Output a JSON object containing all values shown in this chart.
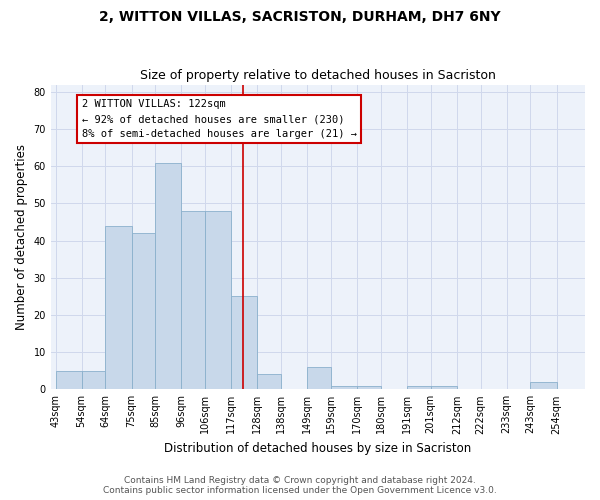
{
  "title": "2, WITTON VILLAS, SACRISTON, DURHAM, DH7 6NY",
  "subtitle": "Size of property relative to detached houses in Sacriston",
  "xlabel": "Distribution of detached houses by size in Sacriston",
  "ylabel": "Number of detached properties",
  "bar_labels": [
    "43sqm",
    "54sqm",
    "64sqm",
    "75sqm",
    "85sqm",
    "96sqm",
    "106sqm",
    "117sqm",
    "128sqm",
    "138sqm",
    "149sqm",
    "159sqm",
    "170sqm",
    "180sqm",
    "191sqm",
    "201sqm",
    "212sqm",
    "222sqm",
    "233sqm",
    "243sqm",
    "254sqm"
  ],
  "bar_values": [
    5,
    5,
    44,
    42,
    61,
    48,
    48,
    25,
    4,
    0,
    6,
    1,
    1,
    0,
    1,
    1,
    0,
    0,
    0,
    2,
    0
  ],
  "bar_color": "#c8d8ea",
  "bar_edge_color": "#8ab0cc",
  "vline_x": 122,
  "vline_color": "#cc0000",
  "annotation_line1": "2 WITTON VILLAS: 122sqm",
  "annotation_line2": "← 92% of detached houses are smaller (230)",
  "annotation_line3": "8% of semi-detached houses are larger (21) →",
  "annotation_box_color": "#ffffff",
  "annotation_box_edge_color": "#cc0000",
  "ylim": [
    0,
    82
  ],
  "footer_line1": "Contains HM Land Registry data © Crown copyright and database right 2024.",
  "footer_line2": "Contains public sector information licensed under the Open Government Licence v3.0.",
  "title_fontsize": 10,
  "subtitle_fontsize": 9,
  "xlabel_fontsize": 8.5,
  "ylabel_fontsize": 8.5,
  "tick_fontsize": 7,
  "footer_fontsize": 6.5,
  "annotation_fontsize": 7.5,
  "grid_color": "#d0d8ec",
  "bg_color": "#edf2fa"
}
